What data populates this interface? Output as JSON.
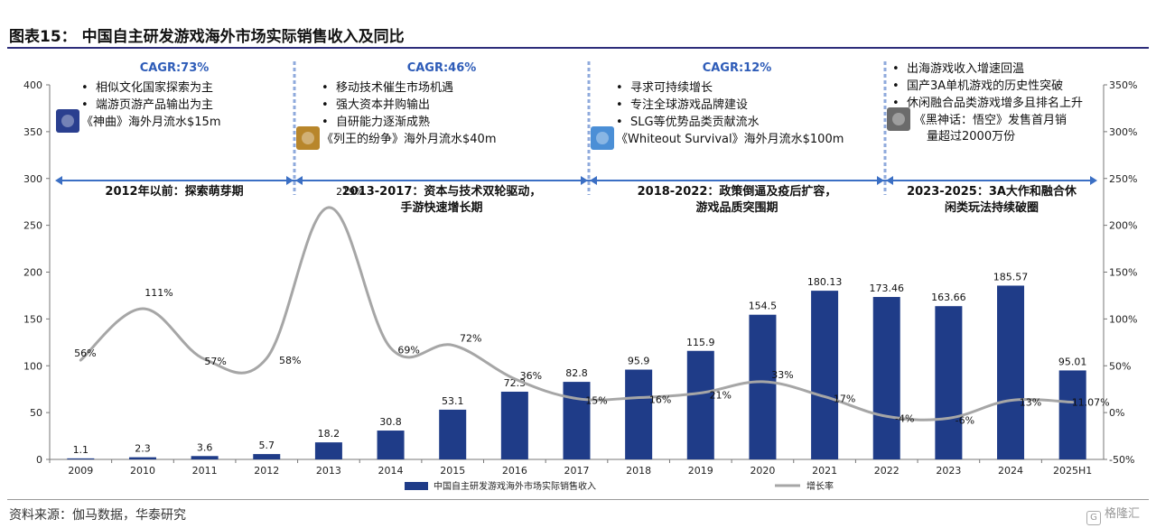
{
  "title": "图表15： 中国自主研发游戏海外市场实际销售收入及同比",
  "source": "资料来源：伽马数据，华泰研究",
  "watermark": "格隆汇",
  "phases": [
    {
      "cagr": "CAGR:73%",
      "bullets": [
        "相似文化国家探索为主",
        "端游页游产品输出为主"
      ],
      "example": "《神曲》海外月流水$15m",
      "label_lines": [
        "2012年以前：探索萌芽期"
      ]
    },
    {
      "cagr": "CAGR:46%",
      "bullets": [
        "移动技术催生市场机遇",
        "强大资本并购输出",
        "自研能力逐渐成熟"
      ],
      "example": "《列王的纷争》海外月流水$40m",
      "label_lines": [
        "2013-2017：资本与技术双轮驱动，",
        "手游快速增长期"
      ]
    },
    {
      "cagr": "CAGR:12%",
      "bullets": [
        "寻求可持续增长",
        "专注全球游戏品牌建设",
        "SLG等优势品类贡献流水"
      ],
      "example": "《Whiteout Survival》海外月流水$100m",
      "label_lines": [
        "2018-2022：政策倒逼及疫后扩容，",
        "游戏品质突围期"
      ]
    },
    {
      "cagr": "",
      "bullets": [
        "出海游戏收入增速回温",
        "国产3A单机游戏的历史性突破",
        "休闲融合品类游戏增多且排名上升"
      ],
      "example": "《黑神话：悟空》发售首月销量超过2000万份",
      "label_lines": [
        "2023-2025：3A大作和融合休",
        "闲类玩法持续破圈"
      ]
    }
  ],
  "chart_data": {
    "type": "bar+line",
    "categories": [
      "2009",
      "2010",
      "2011",
      "2012",
      "2013",
      "2014",
      "2015",
      "2016",
      "2017",
      "2018",
      "2019",
      "2020",
      "2021",
      "2022",
      "2023",
      "2024",
      "2025H1"
    ],
    "series": [
      {
        "name": "中国自主研发游戏海外市场实际销售收入",
        "type": "bar",
        "axis": "left",
        "values": [
          1.1,
          2.3,
          3.6,
          5.7,
          18.2,
          30.8,
          53.1,
          72.3,
          82.8,
          95.9,
          115.9,
          154.5,
          180.13,
          173.46,
          163.66,
          185.57,
          95.01
        ],
        "labels": [
          "1.1",
          "2.3",
          "3.6",
          "5.7",
          "18.2",
          "30.8",
          "53.1",
          "72.3",
          "82.8",
          "95.9",
          "115.9",
          "154.5",
          "180.13",
          "173.46",
          "163.66",
          "185.57",
          "95.01"
        ],
        "color": "#1f3c88"
      },
      {
        "name": "增长率",
        "type": "line",
        "axis": "right",
        "values": [
          56,
          111,
          57,
          58,
          219,
          69,
          72,
          36,
          15,
          16,
          21,
          33,
          17,
          -4,
          -6,
          13,
          11.07
        ],
        "labels": [
          "56%",
          "111%",
          "57%",
          "58%",
          "219%",
          "69%",
          "72%",
          "36%",
          "15%",
          "16%",
          "21%",
          "33%",
          "17%",
          "-4%",
          "-6%",
          "13%",
          "11.07%"
        ],
        "color": "#a6a6a6"
      }
    ],
    "left_axis": {
      "min": 0,
      "max": 400,
      "ticks": [
        "0",
        "50",
        "100",
        "150",
        "200",
        "250",
        "300",
        "350",
        "400"
      ]
    },
    "right_axis": {
      "min": -50,
      "max": 350,
      "ticks": [
        "-50%",
        "0%",
        "50%",
        "100%",
        "150%",
        "200%",
        "250%",
        "300%",
        "350%"
      ]
    },
    "legend_position": "bottom",
    "grid": false
  }
}
